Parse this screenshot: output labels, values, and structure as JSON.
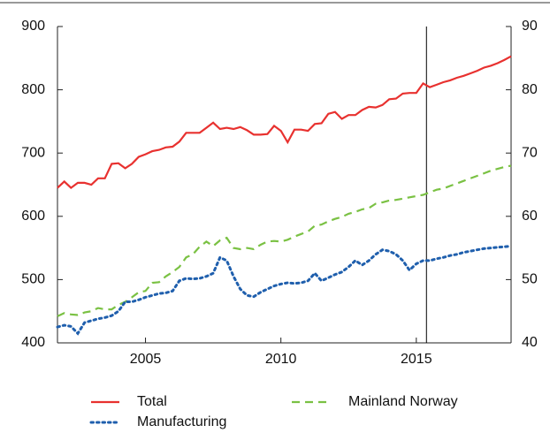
{
  "chart_data": {
    "type": "line",
    "x": [
      2001.75,
      2002,
      2002.25,
      2002.5,
      2002.75,
      2003,
      2003.25,
      2003.5,
      2003.75,
      2004,
      2004.25,
      2004.5,
      2004.75,
      2005,
      2005.25,
      2005.5,
      2005.75,
      2006,
      2006.25,
      2006.5,
      2006.75,
      2007,
      2007.25,
      2007.5,
      2007.75,
      2008,
      2008.25,
      2008.5,
      2008.75,
      2009,
      2009.25,
      2009.5,
      2009.75,
      2010,
      2010.25,
      2010.5,
      2010.75,
      2011,
      2011.25,
      2011.5,
      2011.75,
      2012,
      2012.25,
      2012.5,
      2012.75,
      2013,
      2013.25,
      2013.5,
      2013.75,
      2014,
      2014.25,
      2014.5,
      2014.75,
      2015,
      2015.25,
      2015.5,
      2015.75,
      2016,
      2016.25,
      2016.5,
      2016.75,
      2017,
      2017.25,
      2017.5,
      2017.75,
      2018,
      2018.25,
      2018.5
    ],
    "series": [
      {
        "name": "Total",
        "color": "#e8312f",
        "dash": "solid",
        "values": [
          645,
          655,
          645,
          653,
          653,
          650,
          660,
          660,
          683,
          684,
          676,
          683,
          694,
          698,
          703,
          705,
          709,
          710,
          718,
          732,
          732,
          732,
          740,
          748,
          738,
          740,
          738,
          741,
          736,
          729,
          729,
          730,
          743,
          735,
          717,
          737,
          737,
          735,
          746,
          747,
          762,
          765,
          754,
          760,
          760,
          768,
          773,
          772,
          776,
          785,
          786,
          794,
          795,
          795,
          810,
          804,
          808,
          812,
          815,
          819,
          822,
          826,
          830,
          835,
          838,
          842,
          847,
          853
        ]
      },
      {
        "name": "Mainland Norway",
        "color": "#7ac143",
        "dash": "dashed",
        "axis": "y2",
        "values": [
          44.2,
          44.7,
          44.5,
          44.4,
          44.8,
          45.0,
          45.5,
          45.3,
          45.3,
          46.0,
          46.5,
          47.2,
          48.0,
          48.2,
          49.5,
          49.6,
          50.5,
          51.2,
          52.0,
          53.5,
          54.0,
          55.2,
          56.0,
          55.3,
          56.2,
          56.6,
          55.0,
          54.8,
          55.0,
          54.8,
          55.5,
          56.0,
          56.1,
          56.0,
          56.3,
          56.8,
          57.2,
          57.6,
          58.5,
          58.7,
          59.2,
          59.6,
          59.9,
          60.4,
          60.7,
          61.1,
          61.3,
          62.0,
          62.2,
          62.5,
          62.6,
          62.8,
          63.0,
          63.2,
          63.4,
          63.8,
          64.2,
          64.4,
          64.8,
          65.2,
          65.6,
          66.0,
          66.4,
          66.8,
          67.2,
          67.5,
          67.8,
          68.0
        ]
      },
      {
        "name": "Manufacturing",
        "color": "#1f5fad",
        "dash": "dotted",
        "axis": "y2",
        "values": [
          42.5,
          42.8,
          42.6,
          41.5,
          43.2,
          43.5,
          43.8,
          44.0,
          44.3,
          45.0,
          46.5,
          46.5,
          46.8,
          47.2,
          47.5,
          47.8,
          47.9,
          48.2,
          49.8,
          50.2,
          50.1,
          50.2,
          50.5,
          51.0,
          53.5,
          53.0,
          50.5,
          48.5,
          47.5,
          47.3,
          48.0,
          48.5,
          49.0,
          49.3,
          49.5,
          49.4,
          49.5,
          49.8,
          51.0,
          49.8,
          50.3,
          50.8,
          51.2,
          52.0,
          53.0,
          52.3,
          53.0,
          54.0,
          54.7,
          54.5,
          54.0,
          53.0,
          51.5,
          52.5,
          53.0,
          53.0,
          53.3,
          53.5,
          53.8,
          54.0,
          54.3,
          54.5,
          54.7,
          54.9,
          55.0,
          55.1,
          55.2,
          55.3
        ]
      }
    ],
    "xlim": [
      2001.75,
      2018.5
    ],
    "xticks": [
      2005,
      2010,
      2015
    ],
    "ylim": [
      400,
      900
    ],
    "yticks": [
      400,
      500,
      600,
      700,
      800,
      900
    ],
    "y2lim": [
      40,
      90
    ],
    "y2ticks": [
      40,
      50,
      60,
      70,
      80,
      90
    ],
    "vline": 2015.375
  }
}
